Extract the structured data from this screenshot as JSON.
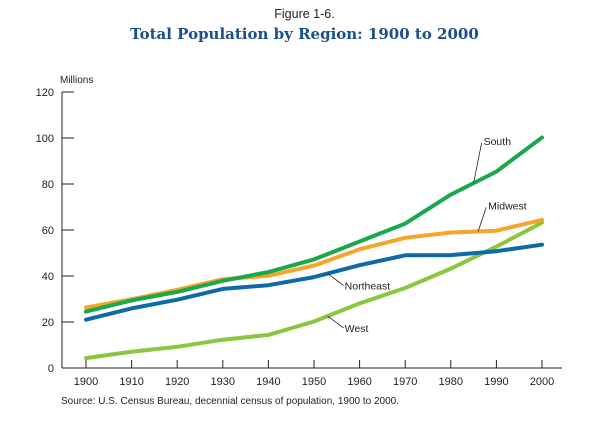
{
  "figure_label": "Figure 1-6.",
  "title": "Total Population by Region:  1900 to 2000",
  "source": "Source:  U.S. Census Bureau, decennial census of population, 1900 to 2000.",
  "chart_data": {
    "type": "line",
    "title": "Total Population by Region:  1900 to 2000",
    "ylabel": "Millions",
    "xlabel": "",
    "x": [
      1900,
      1910,
      1920,
      1930,
      1940,
      1950,
      1960,
      1970,
      1980,
      1990,
      2000
    ],
    "ylim": [
      0,
      120
    ],
    "yticks": [
      0,
      20,
      40,
      60,
      80,
      100,
      120
    ],
    "grid": false,
    "series": [
      {
        "name": "South",
        "color": "#1aa84c",
        "values": [
          24.5,
          29.4,
          33.1,
          37.9,
          41.7,
          47.2,
          55.0,
          62.8,
          75.4,
          85.4,
          100.2
        ]
      },
      {
        "name": "Midwest",
        "color": "#f5a52a",
        "values": [
          26.3,
          29.9,
          34.0,
          38.6,
          40.1,
          44.5,
          51.6,
          56.6,
          58.9,
          59.7,
          64.4
        ]
      },
      {
        "name": "Northeast",
        "color": "#0d6aa8",
        "values": [
          21.0,
          25.9,
          29.7,
          34.4,
          36.0,
          39.5,
          44.7,
          49.0,
          49.1,
          50.8,
          53.6
        ]
      },
      {
        "name": "West",
        "color": "#8cc63f",
        "values": [
          4.3,
          7.1,
          9.2,
          12.3,
          14.4,
          20.2,
          28.1,
          34.8,
          43.2,
          52.8,
          63.2
        ]
      }
    ],
    "annotations": [
      {
        "text": "South",
        "series": "South"
      },
      {
        "text": "Midwest",
        "series": "Midwest"
      },
      {
        "text": "Northeast",
        "series": "Northeast"
      },
      {
        "text": "West",
        "series": "West"
      }
    ]
  }
}
